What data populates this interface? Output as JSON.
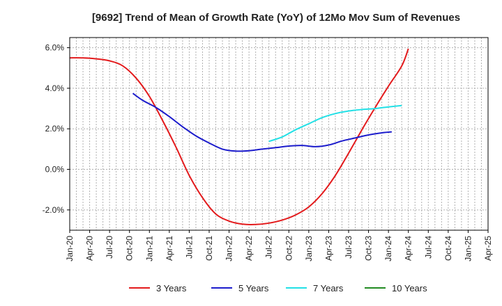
{
  "chart_data": {
    "type": "line",
    "title": "[9692]  Trend of Mean of Growth Rate (YoY) of 12Mo Mov Sum of Revenues",
    "xlabel": "",
    "ylabel": "",
    "ylim": [
      -3.0,
      6.5
    ],
    "y_ticks": [
      -2.0,
      0.0,
      2.0,
      4.0,
      6.0
    ],
    "y_tick_labels": [
      "-2.0%",
      "0.0%",
      "2.0%",
      "4.0%",
      "6.0%"
    ],
    "x_ticks": [
      "Jan-20",
      "Apr-20",
      "Jul-20",
      "Oct-20",
      "Jan-21",
      "Apr-21",
      "Jul-21",
      "Oct-21",
      "Jan-22",
      "Apr-22",
      "Jul-22",
      "Oct-22",
      "Jan-23",
      "Apr-23",
      "Jul-23",
      "Oct-23",
      "Jan-24",
      "Apr-24",
      "Jul-24",
      "Oct-24",
      "Jan-25",
      "Apr-25"
    ],
    "grid": true,
    "legend_position": "bottom",
    "series": [
      {
        "name": "3 Years",
        "color": "#e31a1c",
        "points": [
          [
            0,
            5.5
          ],
          [
            2,
            5.5
          ],
          [
            4,
            5.45
          ],
          [
            6,
            5.35
          ],
          [
            8,
            5.1
          ],
          [
            10,
            4.5
          ],
          [
            12,
            3.6
          ],
          [
            14,
            2.4
          ],
          [
            16,
            1.1
          ],
          [
            18,
            -0.3
          ],
          [
            20,
            -1.4
          ],
          [
            22,
            -2.2
          ],
          [
            24,
            -2.55
          ],
          [
            26,
            -2.7
          ],
          [
            28,
            -2.72
          ],
          [
            30,
            -2.65
          ],
          [
            32,
            -2.5
          ],
          [
            34,
            -2.25
          ],
          [
            36,
            -1.85
          ],
          [
            38,
            -1.2
          ],
          [
            40,
            -0.3
          ],
          [
            42,
            0.8
          ],
          [
            44,
            1.95
          ],
          [
            46,
            3.05
          ],
          [
            48,
            4.1
          ],
          [
            50,
            5.1
          ],
          [
            51,
            5.95
          ]
        ]
      },
      {
        "name": "5 Years",
        "color": "#1c1ccc",
        "points": [
          [
            9.5,
            3.75
          ],
          [
            11,
            3.4
          ],
          [
            13,
            3.05
          ],
          [
            15,
            2.6
          ],
          [
            17,
            2.1
          ],
          [
            19,
            1.65
          ],
          [
            21,
            1.3
          ],
          [
            23,
            1.0
          ],
          [
            25,
            0.9
          ],
          [
            27,
            0.92
          ],
          [
            29,
            1.0
          ],
          [
            31,
            1.07
          ],
          [
            33,
            1.15
          ],
          [
            35,
            1.18
          ],
          [
            37,
            1.12
          ],
          [
            39,
            1.2
          ],
          [
            41,
            1.4
          ],
          [
            43,
            1.55
          ],
          [
            45,
            1.7
          ],
          [
            47,
            1.8
          ],
          [
            48.5,
            1.85
          ]
        ]
      },
      {
        "name": "7 Years",
        "color": "#22e0e6",
        "points": [
          [
            30,
            1.38
          ],
          [
            32,
            1.6
          ],
          [
            34,
            1.95
          ],
          [
            36,
            2.25
          ],
          [
            38,
            2.55
          ],
          [
            40,
            2.75
          ],
          [
            42,
            2.88
          ],
          [
            44,
            2.95
          ],
          [
            46,
            3.0
          ],
          [
            48,
            3.08
          ],
          [
            50,
            3.15
          ]
        ]
      },
      {
        "name": "10 Years",
        "color": "#228b22",
        "points": []
      }
    ]
  }
}
